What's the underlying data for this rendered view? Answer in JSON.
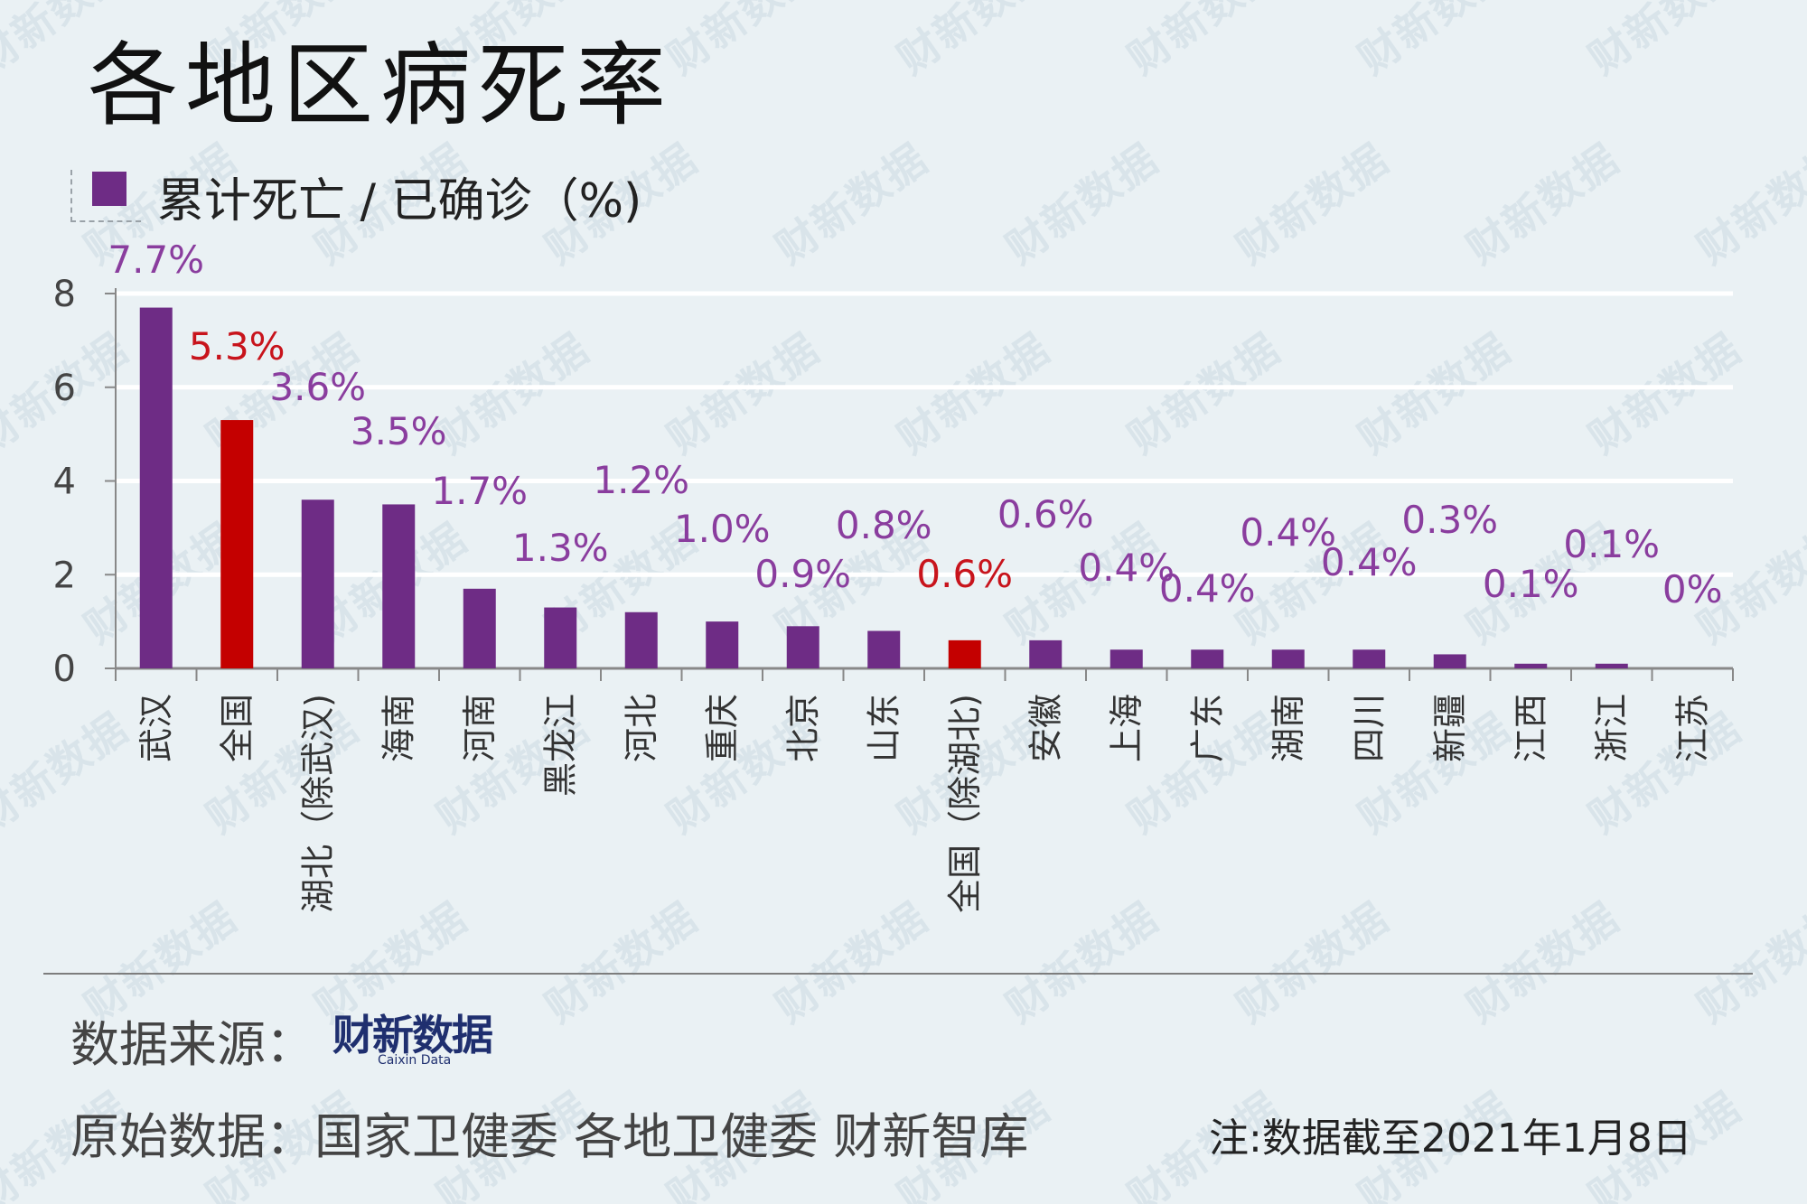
{
  "title": "各地区病死率",
  "legend": {
    "label": "累计死亡 / 已确诊（%)",
    "color": "#6e2c85"
  },
  "watermark_text": "财新数据",
  "colors": {
    "purple": "#6e2c85",
    "highlight": "#c40000",
    "label_purple": "#8a3d9e"
  },
  "chart_data": {
    "type": "bar",
    "categories": [
      "武汉",
      "全国",
      "湖北（除武汉)",
      "海南",
      "河南",
      "黑龙江",
      "河北",
      "重庆",
      "北京",
      "山东",
      "全国（除湖北)",
      "安徽",
      "上海",
      "广东",
      "湖南",
      "四川",
      "新疆",
      "江西",
      "浙江",
      "江苏"
    ],
    "values": [
      7.7,
      5.3,
      3.6,
      3.5,
      1.7,
      1.3,
      1.2,
      1.0,
      0.9,
      0.8,
      0.6,
      0.6,
      0.4,
      0.4,
      0.4,
      0.4,
      0.3,
      0.1,
      0.1,
      0.0
    ],
    "data_labels": [
      "7.7%",
      "5.3%",
      "3.6%",
      "3.5%",
      "1.7%",
      "1.3%",
      "1.2%",
      "1.0%",
      "0.9%",
      "0.8%",
      "0.6%",
      "0.6%",
      "0.4%",
      "0.4%",
      "0.4%",
      "0.4%",
      "0.3%",
      "0.1%",
      "0.1%",
      "0%"
    ],
    "highlight": [
      false,
      true,
      false,
      false,
      false,
      false,
      false,
      false,
      false,
      false,
      true,
      false,
      false,
      false,
      false,
      false,
      false,
      false,
      false,
      false
    ],
    "yticks": [
      0,
      2,
      4,
      6,
      8
    ],
    "ylim": [
      0,
      8
    ],
    "grid": true
  },
  "footer": {
    "source_label": "数据来源：",
    "source_logo": "财新数据",
    "source_logo_sub": "Caixin Data",
    "raw_data": "原始数据：国家卫健委  各地卫健委  财新智库",
    "note": "注:数据截至2021年1月8日"
  }
}
